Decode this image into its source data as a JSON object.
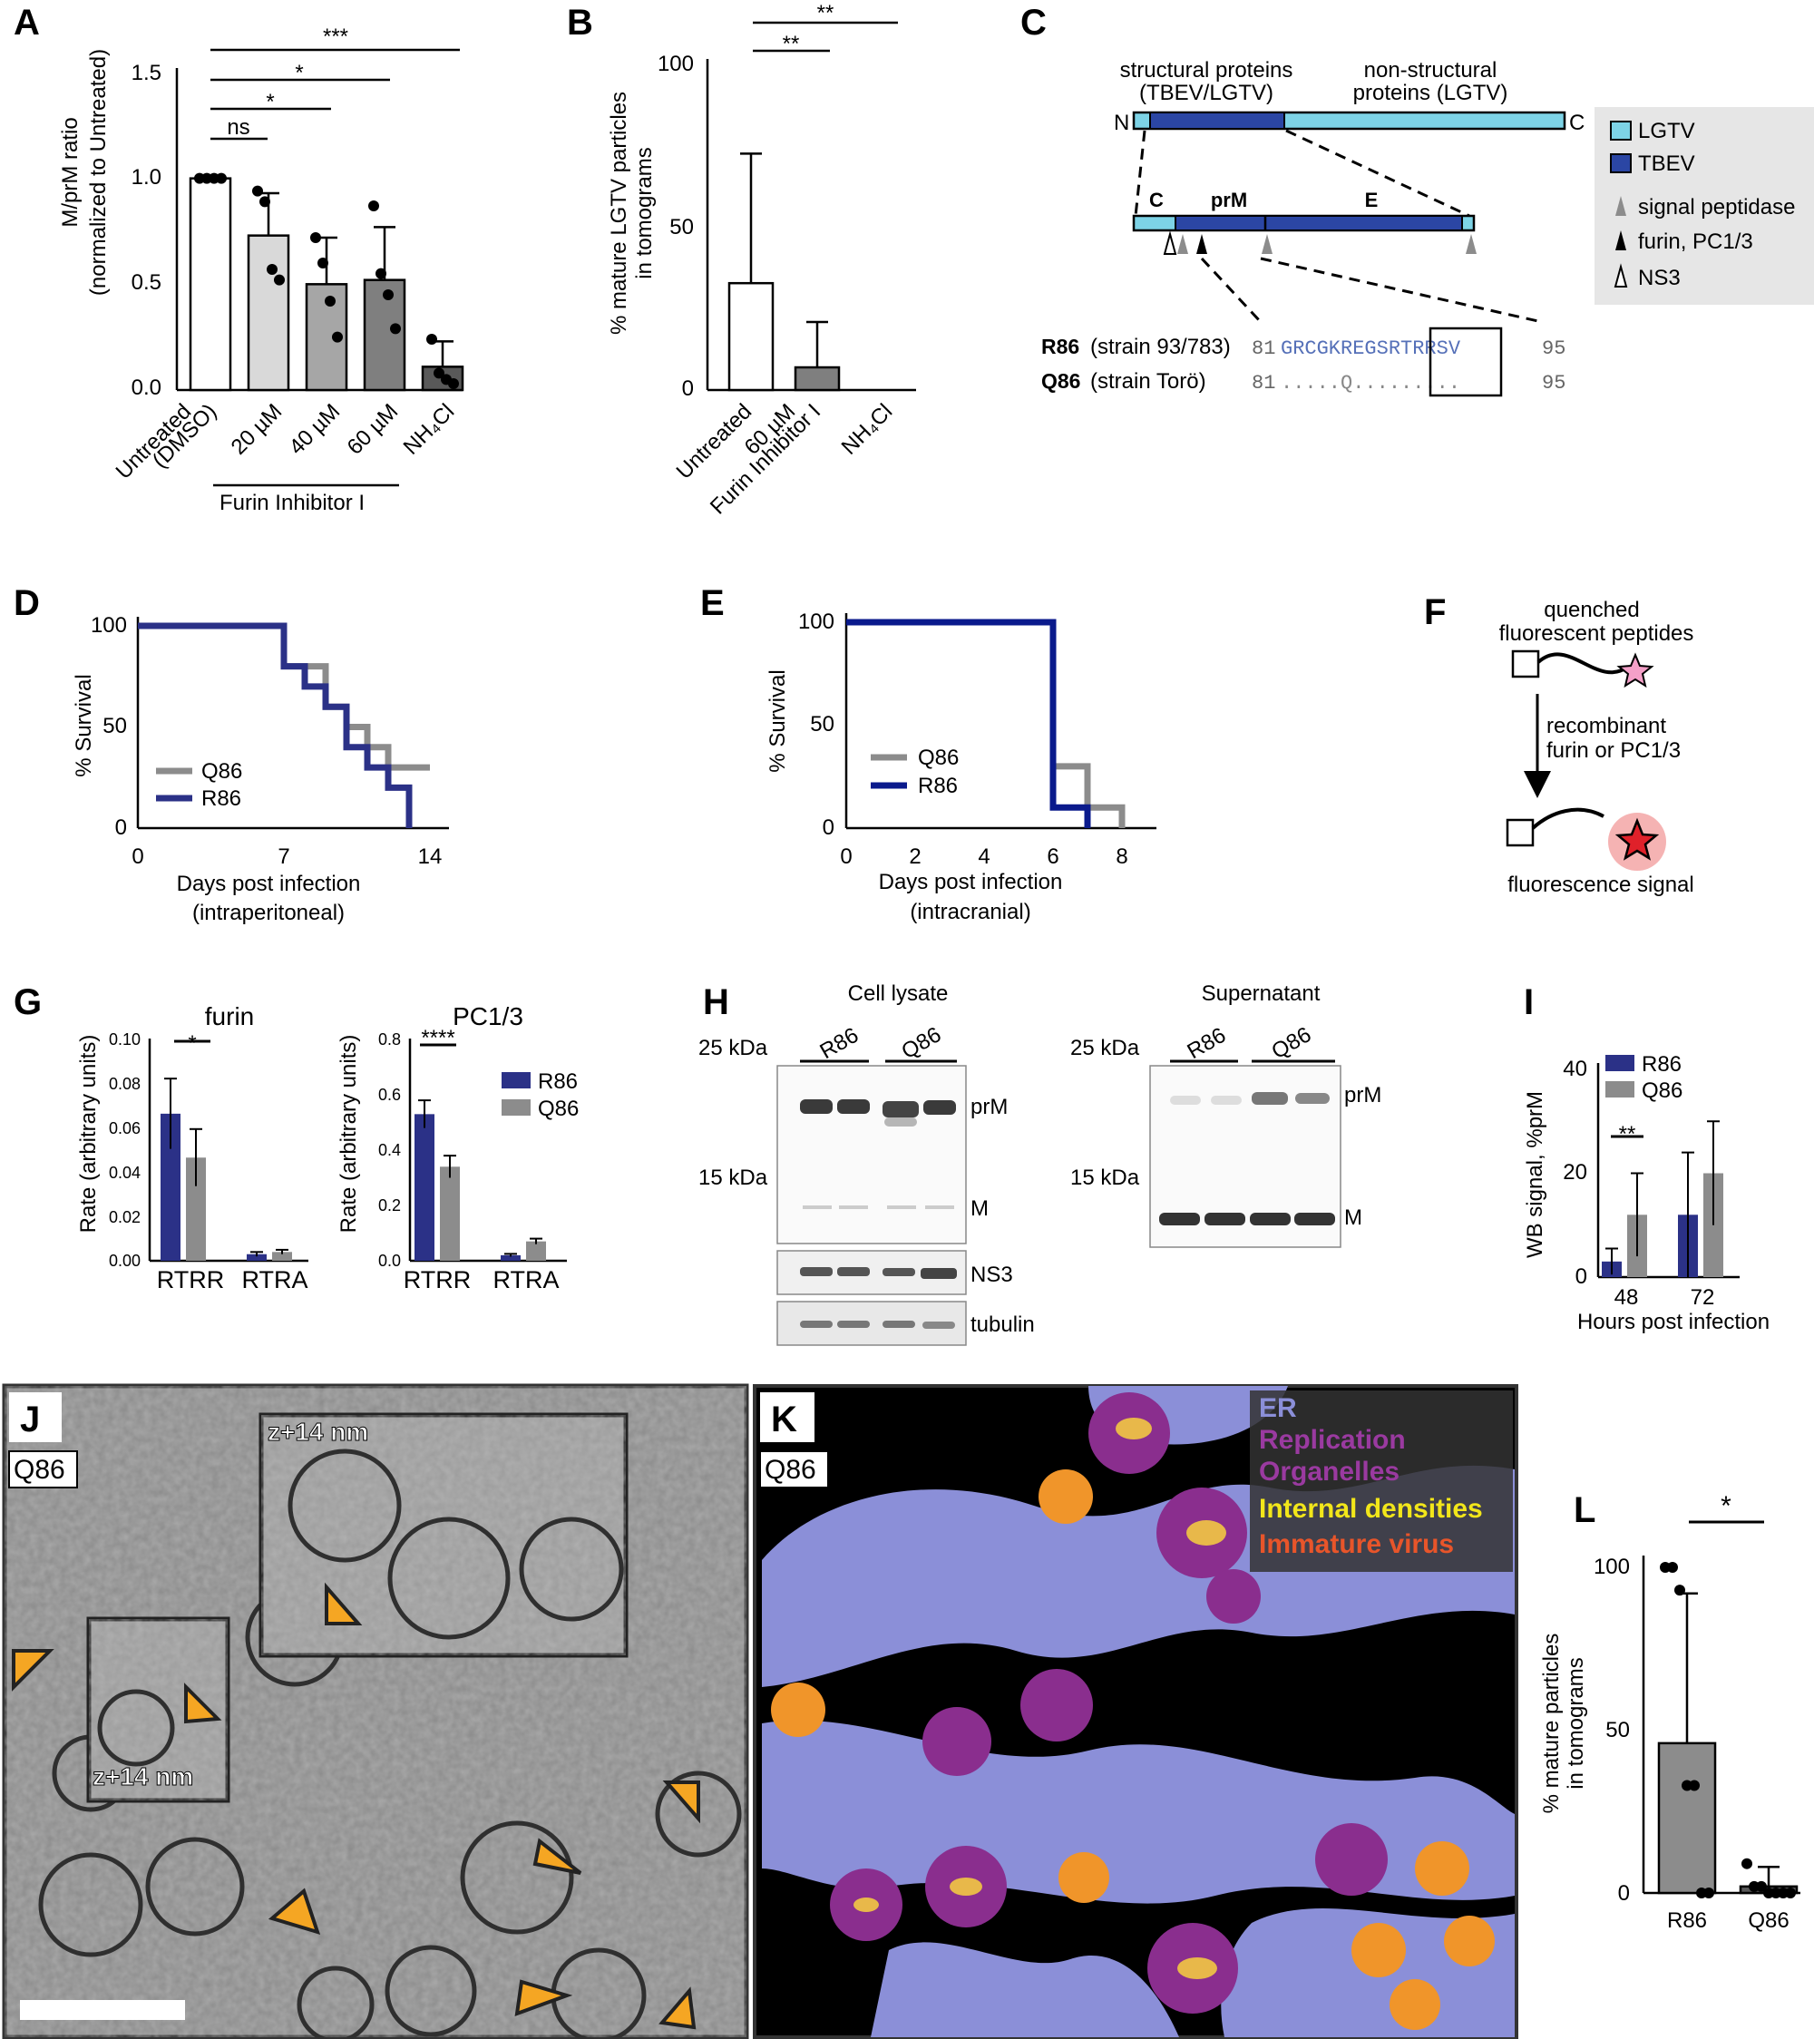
{
  "panels": {
    "A": {
      "letter": "A",
      "ylabel": "M/prM ratio",
      "ylabel2": "(normalized to Untreated)",
      "yticks": [
        "1.5",
        "1.0",
        "0.5",
        "0.0"
      ],
      "categories": [
        "Untreated",
        "(DMSO)",
        "20 µM",
        "40 µM",
        "60 µM",
        "NH₄Cl"
      ],
      "group_label": "Furin Inhibitor I",
      "sig": [
        "ns",
        "*",
        "*",
        "***"
      ]
    },
    "B": {
      "letter": "B",
      "ylabel": "% mature LGTV particles",
      "ylabel2": "in tomograms",
      "yticks": [
        "100",
        "50",
        "0"
      ],
      "categories": [
        "Untreated",
        "60 µM",
        "Furin Inhibitor I",
        "NH₄Cl"
      ],
      "sig": [
        "**",
        "**"
      ]
    },
    "C": {
      "letter": "C",
      "structural": "structural proteins",
      "structural2": "(TBEV/LGTV)",
      "nonstructural": "non-structural",
      "nonstructural2": "proteins (LGTV)",
      "N": "N",
      "Cterm": "C",
      "seg_c": "C",
      "seg_prm": "prM",
      "seg_e": "E",
      "legend": [
        "LGTV",
        "TBEV",
        "signal peptidase",
        "furin, PC1/3",
        "NS3"
      ],
      "r86_name": "R86",
      "r86_strain": "(strain 93/783)",
      "r86_start": "81",
      "r86_seq": "GRCGKREGSRTRRSV",
      "r86_end": "95",
      "q86_name": "Q86",
      "q86_strain": "(strain Torö)",
      "q86_start": "81",
      "q86_seq": ".....Q.........",
      "q86_end": "95"
    },
    "D": {
      "letter": "D",
      "ylabel": "% Survival",
      "yticks": [
        "100",
        "50",
        "0"
      ],
      "xticks": [
        "0",
        "7",
        "14"
      ],
      "xlabel": "Days post infection",
      "xlabel2": "(intraperitoneal)",
      "legend": [
        "Q86",
        "R86"
      ]
    },
    "E": {
      "letter": "E",
      "ylabel": "% Survival",
      "yticks": [
        "100",
        "50",
        "0"
      ],
      "xticks": [
        "0",
        "2",
        "4",
        "6",
        "8"
      ],
      "xlabel": "Days post infection",
      "xlabel2": "(intracranial)",
      "legend": [
        "Q86",
        "R86"
      ]
    },
    "F": {
      "letter": "F",
      "top": "quenched",
      "top2": "fluorescent peptides",
      "mid": "recombinant",
      "mid2": "furin or PC1/3",
      "bottom": "fluorescence signal"
    },
    "G": {
      "letter": "G",
      "title1": "furin",
      "title2": "PC1/3",
      "ylabel": "Rate (arbitrary units)",
      "yticks1": [
        "0.10",
        "0.08",
        "0.06",
        "0.04",
        "0.02",
        "0.00"
      ],
      "yticks2": [
        "0.8",
        "0.6",
        "0.4",
        "0.2",
        "0.0"
      ],
      "xcats": [
        "RTRR",
        "RTRA"
      ],
      "sig1": "*",
      "sig2": "****",
      "legend": [
        "R86",
        "Q86"
      ]
    },
    "H": {
      "letter": "H",
      "title1": "Cell lysate",
      "title2": "Supernatant",
      "lane_r": "R86",
      "lane_q": "Q86",
      "kda25": "25 kDa",
      "kda15": "15 kDa",
      "band_prm": "prM",
      "band_m": "M",
      "band_ns3": "NS3",
      "band_tub": "tubulin"
    },
    "I": {
      "letter": "I",
      "ylabel": "WB signal, %prM",
      "yticks": [
        "40",
        "20",
        "0"
      ],
      "xticks": [
        "48",
        "72"
      ],
      "xlabel": "Hours post infection",
      "sig": "**",
      "legend": [
        "R86",
        "Q86"
      ]
    },
    "J": {
      "letter": "J",
      "tag": "Q86",
      "inset1": "z+14 nm",
      "inset2": "z+14 nm"
    },
    "K": {
      "letter": "K",
      "tag": "Q86",
      "legend": [
        "ER",
        "Replication",
        "Organelles",
        "Internal densities",
        "Immature virus"
      ]
    },
    "L": {
      "letter": "L",
      "ylabel": "% mature particles",
      "ylabel2": "in tomograms",
      "yticks": [
        "100",
        "50",
        "0"
      ],
      "xcats": [
        "R86",
        "Q86"
      ],
      "sig": "*"
    }
  },
  "chart_data": [
    {
      "panel": "A",
      "type": "bar",
      "categories": [
        "Untreated (DMSO)",
        "20 µM",
        "40 µM",
        "60 µM",
        "NH4Cl"
      ],
      "values": [
        1.0,
        0.73,
        0.5,
        0.52,
        0.11
      ],
      "errors": [
        0.01,
        0.2,
        0.22,
        0.25,
        0.12
      ],
      "ylim": [
        0,
        1.5
      ],
      "points": [
        [
          1,
          1,
          1,
          1
        ],
        [
          0.94,
          0.89,
          0.57,
          0.52
        ],
        [
          0.72,
          0.6,
          0.42,
          0.25
        ],
        [
          0.87,
          0.55,
          0.45,
          0.29
        ],
        [
          0.24,
          0.08,
          0.05,
          0.03
        ]
      ],
      "colors": [
        "#ffffff",
        "#d9d9d9",
        "#a6a6a6",
        "#7f7f7f",
        "#595959"
      ]
    },
    {
      "panel": "B",
      "type": "bar",
      "categories": [
        "Untreated",
        "60 µM Furin Inhibitor I",
        "NH4Cl"
      ],
      "values": [
        33,
        7,
        0
      ],
      "errors": [
        40,
        14,
        0
      ],
      "ylim": [
        0,
        100
      ],
      "colors": [
        "#ffffff",
        "#7f7f7f",
        "#595959"
      ]
    },
    {
      "panel": "D",
      "type": "line",
      "xlim": [
        0,
        14
      ],
      "ylim": [
        0,
        100
      ],
      "series": [
        {
          "name": "Q86",
          "x": [
            0,
            6,
            7,
            8,
            9,
            10,
            11,
            12,
            14
          ],
          "y": [
            100,
            100,
            80,
            80,
            60,
            50,
            40,
            30,
            30
          ],
          "color": "#8c8c8c"
        },
        {
          "name": "R86",
          "x": [
            0,
            6,
            7,
            8,
            9,
            10,
            11,
            12,
            13
          ],
          "y": [
            100,
            100,
            80,
            70,
            60,
            40,
            30,
            20,
            0
          ],
          "color": "#2b3187"
        }
      ]
    },
    {
      "panel": "E",
      "type": "line",
      "xlim": [
        0,
        8
      ],
      "ylim": [
        0,
        100
      ],
      "series": [
        {
          "name": "Q86",
          "x": [
            0,
            6,
            6,
            7,
            7,
            8,
            8
          ],
          "y": [
            100,
            100,
            30,
            30,
            10,
            10,
            0
          ],
          "color": "#8c8c8c"
        },
        {
          "name": "R86",
          "x": [
            0,
            6,
            6,
            7,
            7
          ],
          "y": [
            100,
            100,
            10,
            10,
            0
          ],
          "color": "#0a1a8c"
        }
      ]
    },
    {
      "panel": "G-furin",
      "type": "bar",
      "categories": [
        "RTRR",
        "RTRA"
      ],
      "series": [
        {
          "name": "R86",
          "values": [
            0.067,
            0.003
          ],
          "errors": [
            0.016,
            0.001
          ],
          "color": "#2b3187"
        },
        {
          "name": "Q86",
          "values": [
            0.047,
            0.004
          ],
          "errors": [
            0.013,
            0.001
          ],
          "color": "#8c8c8c"
        }
      ],
      "ylim": [
        0,
        0.1
      ]
    },
    {
      "panel": "G-PC1/3",
      "type": "bar",
      "categories": [
        "RTRR",
        "RTRA"
      ],
      "series": [
        {
          "name": "R86",
          "values": [
            0.53,
            0.02
          ],
          "errors": [
            0.05,
            0.005
          ],
          "color": "#2b3187"
        },
        {
          "name": "Q86",
          "values": [
            0.34,
            0.07
          ],
          "errors": [
            0.04,
            0.01
          ],
          "color": "#8c8c8c"
        }
      ],
      "ylim": [
        0,
        0.8
      ]
    },
    {
      "panel": "I",
      "type": "bar",
      "categories": [
        "48",
        "72"
      ],
      "series": [
        {
          "name": "R86",
          "values": [
            3,
            12
          ],
          "errors": [
            2.5,
            12
          ],
          "color": "#2b3187"
        },
        {
          "name": "Q86",
          "values": [
            12,
            20
          ],
          "errors": [
            8,
            10
          ],
          "color": "#8c8c8c"
        }
      ],
      "ylim": [
        0,
        40
      ]
    },
    {
      "panel": "L",
      "type": "bar",
      "categories": [
        "R86",
        "Q86"
      ],
      "values": [
        46,
        2
      ],
      "errors": [
        46,
        6
      ],
      "ylim": [
        0,
        100
      ],
      "points": [
        [
          100,
          100,
          93,
          33,
          33,
          0,
          0
        ],
        [
          9,
          2,
          2,
          0,
          0,
          0,
          0
        ]
      ],
      "colors": [
        "#8c8c8c",
        "#595959"
      ]
    }
  ]
}
